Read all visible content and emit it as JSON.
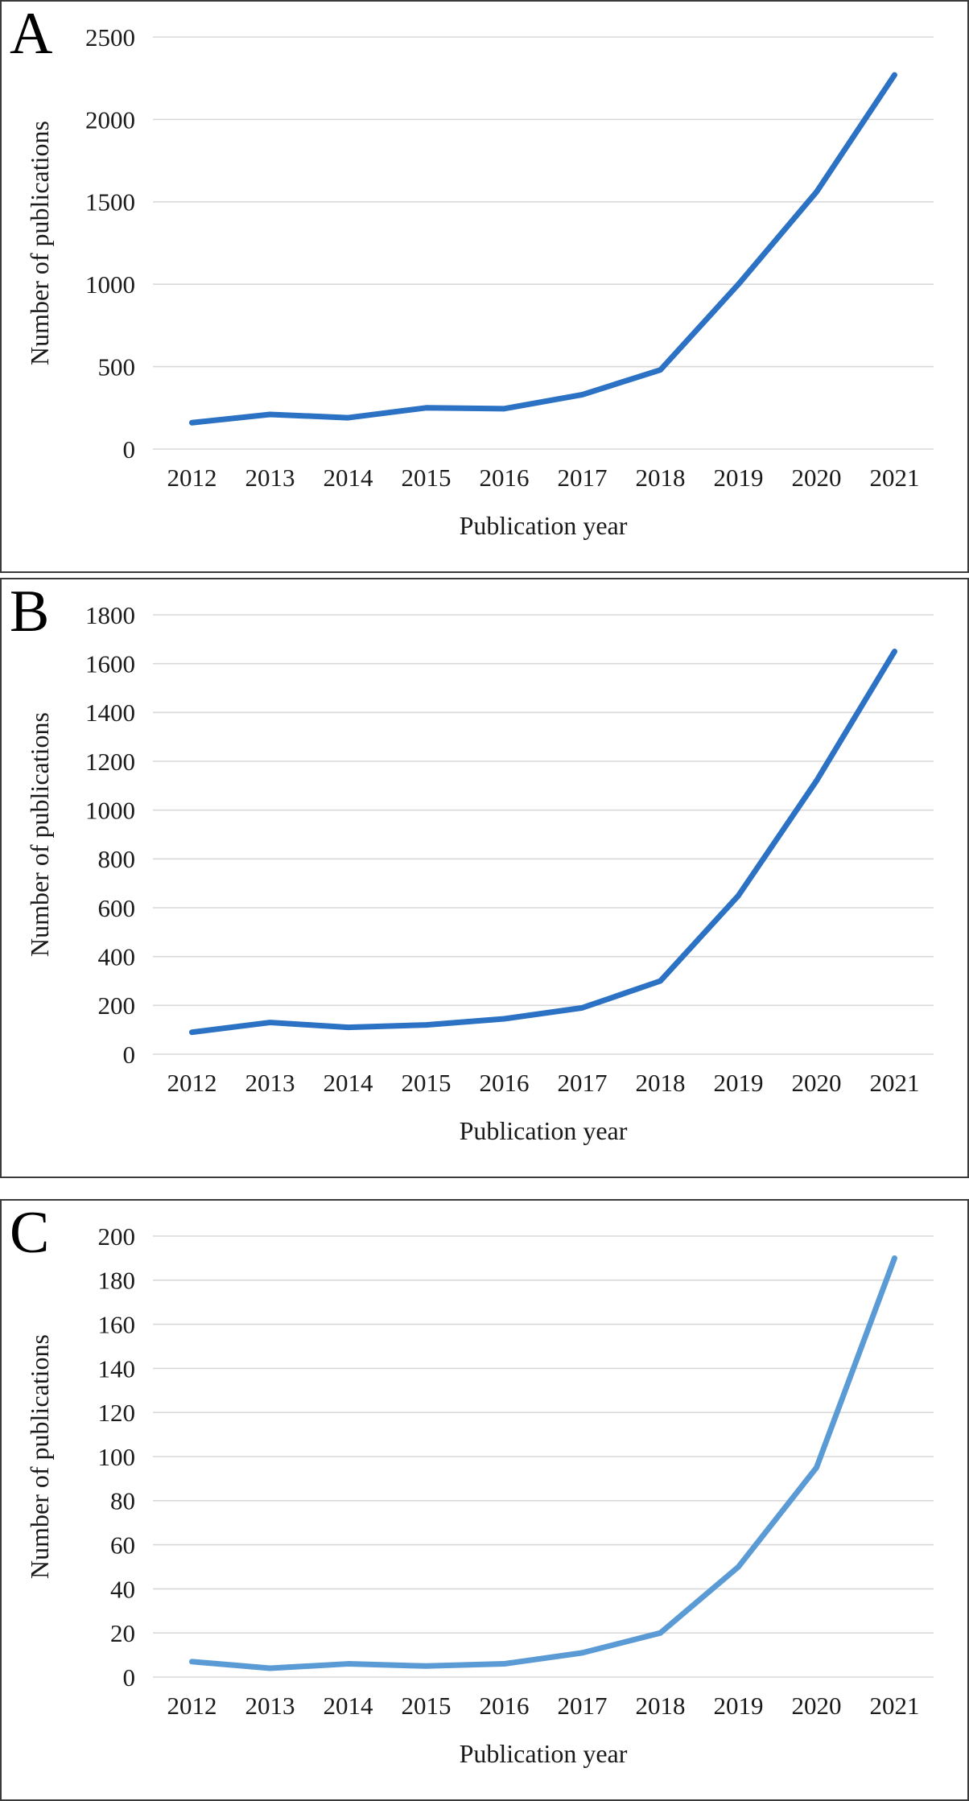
{
  "page": {
    "background_color": "#ffffff",
    "border_color": "#3a3a3a",
    "gridline_color": "#d9d9d9",
    "text_color": "#1a1a1a"
  },
  "chart_data": [
    {
      "type": "line",
      "panel_label": "A",
      "title": "",
      "xlabel": "Publication year",
      "ylabel": "Number of publications",
      "categories": [
        "2012",
        "2013",
        "2014",
        "2015",
        "2016",
        "2017",
        "2018",
        "2019",
        "2020",
        "2021"
      ],
      "values": [
        160,
        210,
        190,
        250,
        245,
        330,
        480,
        1000,
        1560,
        2270
      ],
      "ylim": [
        0,
        2500
      ],
      "y_ticks": [
        0,
        500,
        1000,
        1500,
        2000,
        2500
      ],
      "line_color": "#2b72c4",
      "grid": "horizontal",
      "legend": "none"
    },
    {
      "type": "line",
      "panel_label": "B",
      "title": "",
      "xlabel": "Publication year",
      "ylabel": "Number of publications",
      "categories": [
        "2012",
        "2013",
        "2014",
        "2015",
        "2016",
        "2017",
        "2018",
        "2019",
        "2020",
        "2021"
      ],
      "values": [
        90,
        130,
        110,
        120,
        145,
        190,
        300,
        650,
        1120,
        1650
      ],
      "ylim": [
        0,
        1800
      ],
      "y_ticks": [
        0,
        200,
        400,
        600,
        800,
        1000,
        1200,
        1400,
        1600,
        1800
      ],
      "line_color": "#2b72c4",
      "grid": "horizontal",
      "legend": "none"
    },
    {
      "type": "line",
      "panel_label": "C",
      "title": "",
      "xlabel": "Publication year",
      "ylabel": "Number of publications",
      "categories": [
        "2012",
        "2013",
        "2014",
        "2015",
        "2016",
        "2017",
        "2018",
        "2019",
        "2020",
        "2021"
      ],
      "values": [
        7,
        4,
        6,
        5,
        6,
        11,
        20,
        50,
        95,
        190
      ],
      "ylim": [
        0,
        200
      ],
      "y_ticks": [
        0,
        20,
        40,
        60,
        80,
        100,
        120,
        140,
        160,
        180,
        200
      ],
      "line_color": "#5b9bd5",
      "grid": "horizontal",
      "legend": "none"
    }
  ]
}
